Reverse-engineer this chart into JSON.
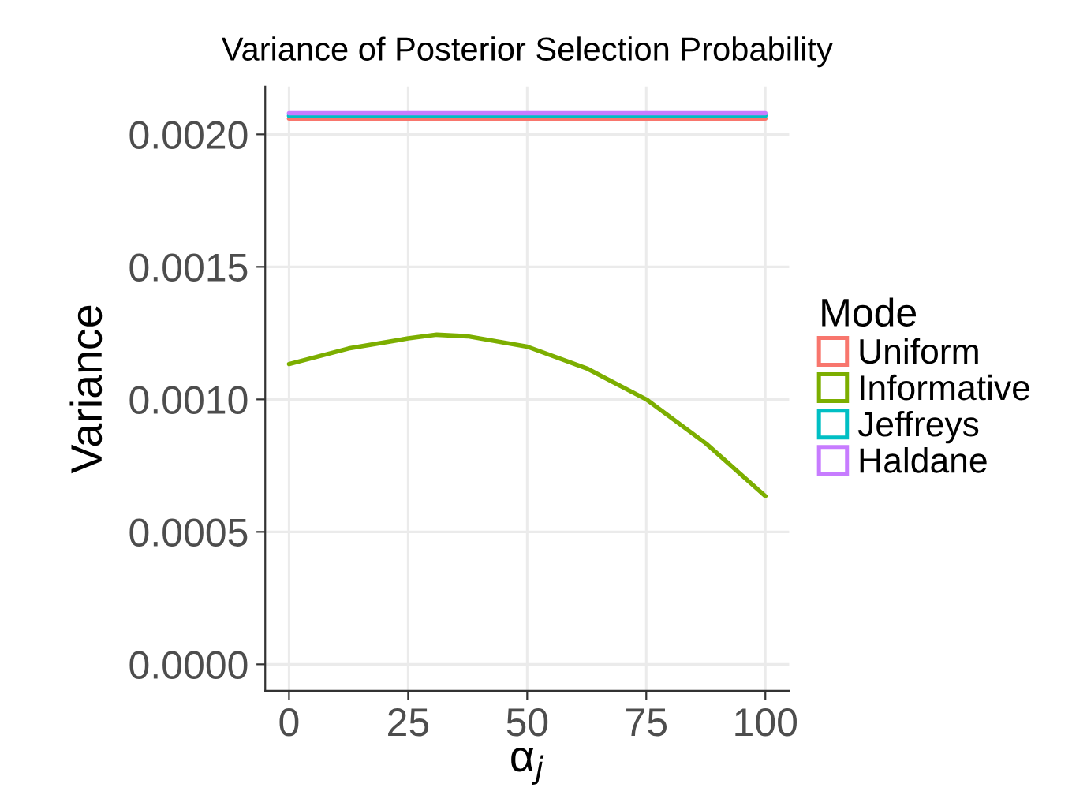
{
  "chart_data": {
    "type": "line",
    "title": "Variance of Posterior Selection Probability",
    "xlabel": "α$_{j}$",
    "ylabel": "Variance",
    "legend_title": "Mode",
    "x": [
      0,
      12.5,
      25,
      31,
      37.5,
      50,
      62.5,
      75,
      87.5,
      100
    ],
    "series": [
      {
        "name": "Uniform",
        "color": "#f8766d",
        "values": [
          0.00206,
          0.00206,
          0.00206,
          0.00206,
          0.00206,
          0.00206,
          0.00206,
          0.00206,
          0.00206,
          0.00206
        ]
      },
      {
        "name": "Informative",
        "color": "#7cae00",
        "values": [
          0.001133,
          0.001192,
          0.00123,
          0.001244,
          0.001238,
          0.001199,
          0.001117,
          0.001,
          0.000834,
          0.000635
        ]
      },
      {
        "name": "Jeffreys",
        "color": "#00bfc4",
        "values": [
          0.00207,
          0.00207,
          0.00207,
          0.00207,
          0.00207,
          0.00207,
          0.00207,
          0.00207,
          0.00207,
          0.00207
        ]
      },
      {
        "name": "Haldane",
        "color": "#c77cff",
        "values": [
          0.00208,
          0.00208,
          0.00208,
          0.00208,
          0.00208,
          0.00208,
          0.00208,
          0.00208,
          0.00208,
          0.00208
        ]
      }
    ],
    "xlim": [
      -5,
      105
    ],
    "ylim": [
      -0.0001,
      0.00218
    ],
    "xticks": [
      0,
      25,
      50,
      75,
      100
    ],
    "yticks": [
      {
        "value": 0,
        "label": "0.0000"
      },
      {
        "value": 0.0005,
        "label": "0.0005"
      },
      {
        "value": 0.001,
        "label": "0.0010"
      },
      {
        "value": 0.0015,
        "label": "0.0015"
      },
      {
        "value": 0.002,
        "label": "0.0020"
      }
    ],
    "grid": true,
    "legend": "right",
    "marker": "none",
    "line_style": "solid"
  }
}
